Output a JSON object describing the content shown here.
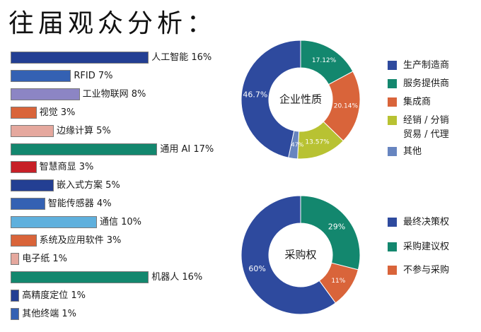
{
  "page_title": "往届观众分析：",
  "chart_data": [
    {
      "type": "bar",
      "orientation": "horizontal",
      "categories": [
        "人工智能",
        "RFID",
        "工业物联网",
        "视觉",
        "边缘计算",
        "通用 AI",
        "智慧商显",
        "嵌入式方案",
        "智能传感器",
        "通信",
        "系统及应用软件",
        "电子纸",
        "机器人",
        "高精度定位",
        "其他终端"
      ],
      "values": [
        16,
        7,
        8,
        3,
        5,
        17,
        3,
        5,
        4,
        10,
        3,
        1,
        16,
        1,
        1
      ],
      "labels": [
        "人工智能 16%",
        "RFID 7%",
        "工业物联网 8%",
        "视觉 3%",
        "边缘计算 5%",
        "通用 AI 17%",
        "智慧商显 3%",
        "嵌入式方案 5%",
        "智能传感器 4%",
        "通信 10%",
        "系统及应用软件 3%",
        "电子纸 1%",
        "机器人 16%",
        "高精度定位 1%",
        "其他终端 1%"
      ],
      "colors": [
        "#233f93",
        "#3461b3",
        "#8c85c4",
        "#d9643a",
        "#e5a89e",
        "#13876e",
        "#c72027",
        "#233f93",
        "#3461b3",
        "#5fb0dd",
        "#d9643a",
        "#e5a89e",
        "#13876e",
        "#233f93",
        "#3461b3"
      ],
      "unit": "%"
    },
    {
      "type": "pie",
      "donut": true,
      "center_label": "企业性质",
      "slices": [
        {
          "name": "服务提供商",
          "value": 17.12,
          "label": "17.12%",
          "color": "#13876e"
        },
        {
          "name": "集成商",
          "value": 20.14,
          "label": "20.14%",
          "color": "#d9643a"
        },
        {
          "name": "经销 / 分销 贸易 / 代理",
          "value": 13.57,
          "label": "13.57%",
          "color": "#b8c232"
        },
        {
          "name": "其他",
          "value": 2.47,
          "label": "2.47%",
          "color": "#6785c0"
        },
        {
          "name": "生产制造商",
          "value": 46.7,
          "label": "46.7%",
          "color": "#2e4a9e"
        }
      ],
      "legend": [
        {
          "text": "生产制造商",
          "color": "#2e4a9e"
        },
        {
          "text": "服务提供商",
          "color": "#13876e"
        },
        {
          "text": "集成商",
          "color": "#d9643a"
        },
        {
          "text": "经销 / 分销",
          "text2": "贸易 / 代理",
          "color": "#b8c232"
        },
        {
          "text": "其他",
          "color": "#6785c0"
        }
      ]
    },
    {
      "type": "pie",
      "donut": true,
      "center_label": "采购权",
      "slices": [
        {
          "name": "采购建议权",
          "value": 29,
          "label": "29%",
          "color": "#13876e"
        },
        {
          "name": "不参与采购",
          "value": 11,
          "label": "11%",
          "color": "#d9643a"
        },
        {
          "name": "最终决策权",
          "value": 60,
          "label": "60%",
          "color": "#2e4a9e"
        }
      ],
      "legend": [
        {
          "text": "最终决策权",
          "color": "#2e4a9e"
        },
        {
          "text": "采购建议权",
          "color": "#13876e"
        },
        {
          "text": "不参与采购",
          "color": "#d9643a"
        }
      ]
    }
  ]
}
